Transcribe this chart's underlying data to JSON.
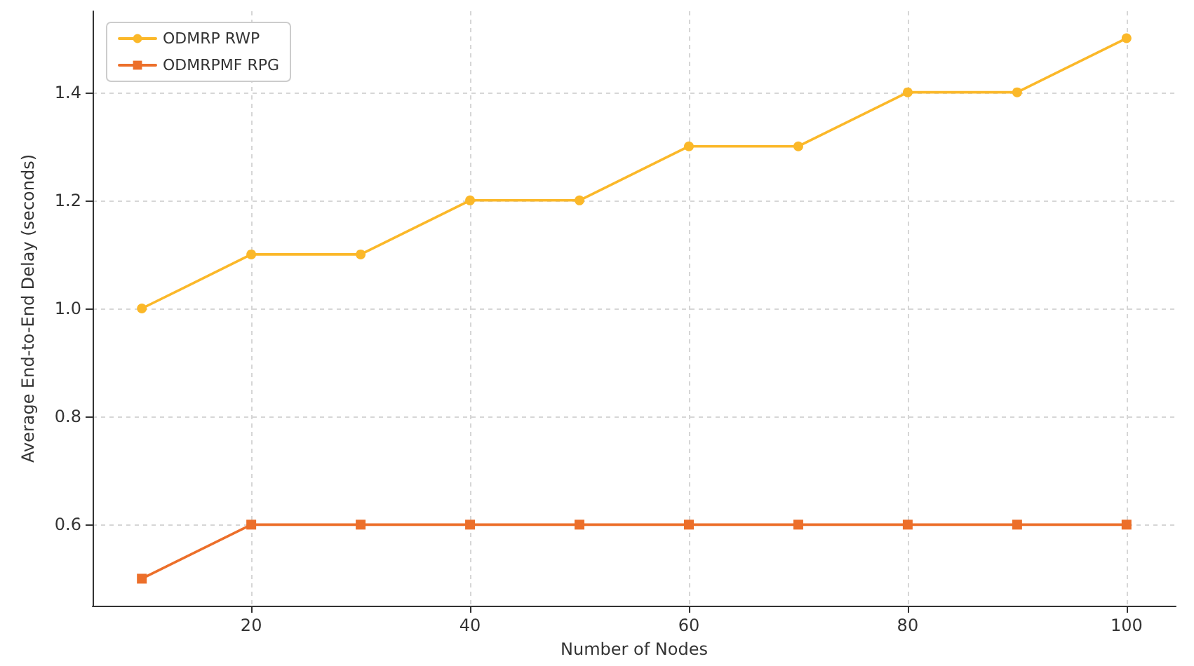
{
  "chart_data": {
    "type": "line",
    "xlabel": "Number of Nodes",
    "ylabel": "Average End-to-End Delay (seconds)",
    "x": [
      10,
      20,
      30,
      40,
      50,
      60,
      70,
      80,
      90,
      100
    ],
    "series": [
      {
        "name": "ODMRP RWP",
        "color": "#fbb829",
        "marker": "circle",
        "values": [
          1.0,
          1.1,
          1.1,
          1.2,
          1.2,
          1.3,
          1.3,
          1.4,
          1.4,
          1.5
        ]
      },
      {
        "name": "ODMRPMF RPG",
        "color": "#ec6f2a",
        "marker": "square",
        "values": [
          0.5,
          0.6,
          0.6,
          0.6,
          0.6,
          0.6,
          0.6,
          0.6,
          0.6,
          0.6
        ]
      }
    ],
    "xlim": [
      5.5,
      104.5
    ],
    "xticks": [
      20,
      40,
      60,
      80,
      100
    ],
    "ylim": [
      0.45,
      1.55
    ],
    "yticks": [
      0.6,
      0.8,
      {
        "value": 1,
        "label": "1.0"
      },
      1.2,
      1.4
    ],
    "grid": true,
    "legend": "top left",
    "line_style": "solid"
  }
}
